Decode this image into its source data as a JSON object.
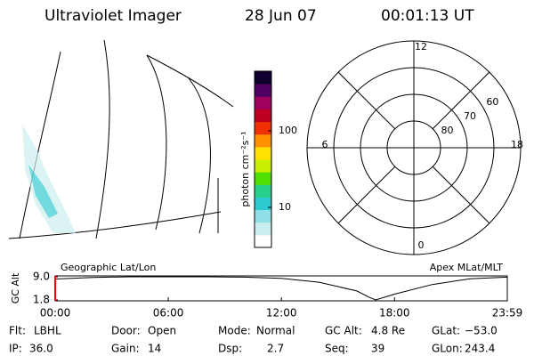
{
  "header": {
    "title": "Ultraviolet Imager",
    "date": "28 Jun 07",
    "time": "00:01:13 UT"
  },
  "colorbar": {
    "label": "photon cm⁻²s⁻¹",
    "scale": "log",
    "lim": [
      3,
      600
    ],
    "ticks": [
      10,
      100
    ],
    "colors": [
      "#ffffff",
      "#cdeef0",
      "#8ee0e6",
      "#2cc9d0",
      "#28d08c",
      "#50e000",
      "#c8f000",
      "#ffe000",
      "#ff9000",
      "#f03000",
      "#c00020",
      "#a00060",
      "#500060",
      "#100030"
    ]
  },
  "polar": {
    "rlim": [
      90,
      50
    ],
    "rticks": [
      80,
      70,
      60
    ],
    "mlt_ticks": [
      12,
      6,
      0,
      18
    ]
  },
  "timeline": {
    "left_label": "Geographic Lat/Lon",
    "right_label": "Apex MLat/MLT",
    "y_label": "GC Alt",
    "ylim": [
      1.8,
      9.0
    ],
    "yticks": [
      {
        "value": 9.0,
        "label": "9.0"
      },
      {
        "value": 1.8,
        "label": "1.8"
      }
    ],
    "xlim": [
      0,
      1439
    ],
    "xticks": [
      {
        "value": 0,
        "label": "00:00"
      },
      {
        "value": 360,
        "label": "06:00"
      },
      {
        "value": 720,
        "label": "12:00"
      },
      {
        "value": 1080,
        "label": "18:00"
      },
      {
        "value": 1439,
        "label": "23:59"
      }
    ],
    "x": [
      0,
      120,
      240,
      360,
      480,
      600,
      720,
      840,
      960,
      1000,
      1020,
      1080,
      1200,
      1320,
      1439
    ],
    "values": [
      8.3,
      8.8,
      9.0,
      9.0,
      9.0,
      8.9,
      8.5,
      7.3,
      4.6,
      2.6,
      1.8,
      3.6,
      6.6,
      8.4,
      8.9
    ],
    "color": "#000000",
    "marker_color": "#ff0000"
  },
  "footer": [
    [
      {
        "label": "Flt:",
        "value": "LBHL"
      },
      {
        "label": "Door:",
        "value": "Open"
      },
      {
        "label": "Mode:",
        "value": "Normal"
      },
      {
        "label": "GC Alt:",
        "value": "4.8 Re"
      },
      {
        "label": "GLat:",
        "value": "−53.0"
      }
    ],
    [
      {
        "label": "IP:",
        "value": "36.0"
      },
      {
        "label": "Gain:",
        "value": "14"
      },
      {
        "label": "Dsp:",
        "value": "2.7"
      },
      {
        "label": "Seq:",
        "value": "39"
      },
      {
        "label": "GLon:",
        "value": "243.4"
      }
    ]
  ]
}
